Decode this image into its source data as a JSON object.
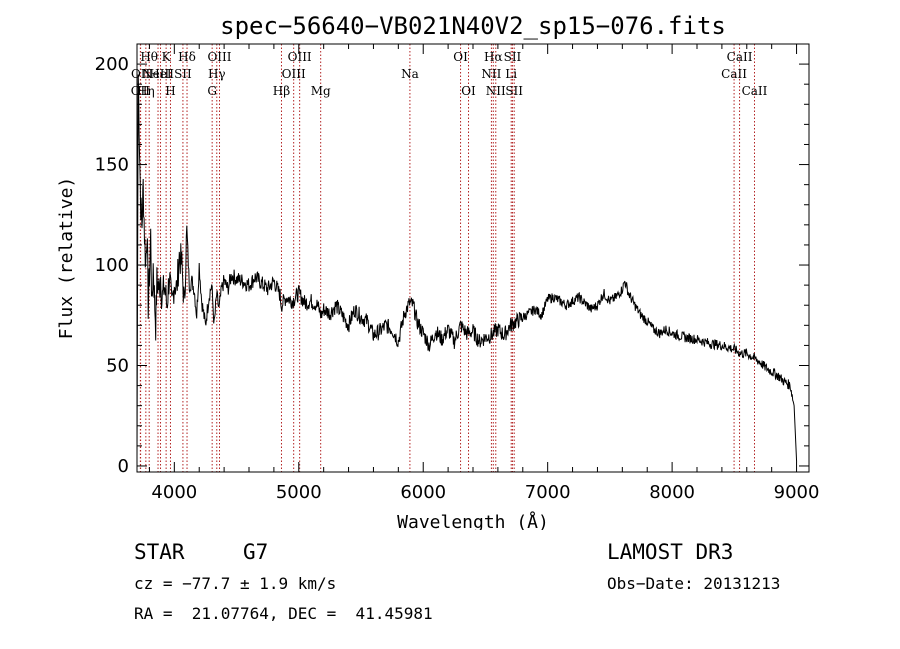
{
  "chart_data": {
    "type": "line",
    "title": "spec−56640−VB021N40V2_sp15−076.fits",
    "xlabel": "Wavelength (Å)",
    "ylabel": "Flux (relative)",
    "xlim": [
      3700,
      9100
    ],
    "ylim": [
      -3,
      210
    ],
    "xticks": [
      4000,
      5000,
      6000,
      7000,
      8000,
      9000
    ],
    "yticks": [
      0,
      50,
      100,
      150,
      200
    ],
    "series": [
      {
        "name": "spectrum",
        "x": [
          3700,
          3710,
          3720,
          3730,
          3740,
          3750,
          3760,
          3770,
          3780,
          3790,
          3800,
          3810,
          3820,
          3830,
          3840,
          3850,
          3860,
          3870,
          3880,
          3890,
          3900,
          3920,
          3940,
          3960,
          3980,
          4000,
          4020,
          4040,
          4060,
          4080,
          4100,
          4120,
          4140,
          4160,
          4180,
          4200,
          4220,
          4250,
          4280,
          4300,
          4320,
          4340,
          4360,
          4380,
          4400,
          4430,
          4460,
          4500,
          4550,
          4600,
          4650,
          4700,
          4750,
          4800,
          4850,
          4860,
          4900,
          4950,
          5000,
          5050,
          5100,
          5150,
          5180,
          5200,
          5250,
          5300,
          5350,
          5400,
          5450,
          5500,
          5550,
          5600,
          5650,
          5700,
          5750,
          5800,
          5850,
          5890,
          5920,
          5950,
          6000,
          6050,
          6100,
          6150,
          6200,
          6250,
          6300,
          6350,
          6400,
          6450,
          6500,
          6550,
          6563,
          6600,
          6650,
          6700,
          6750,
          6800,
          6850,
          6900,
          6950,
          7000,
          7050,
          7100,
          7150,
          7200,
          7250,
          7300,
          7350,
          7400,
          7450,
          7500,
          7550,
          7600,
          7620,
          7650,
          7700,
          7750,
          7800,
          7850,
          7900,
          7950,
          8000,
          8100,
          8200,
          8300,
          8400,
          8500,
          8550,
          8600,
          8650,
          8700,
          8750,
          8800,
          8850,
          8900,
          8950,
          8980,
          9000
        ],
        "y": [
          5,
          195,
          160,
          130,
          120,
          140,
          115,
          100,
          118,
          80,
          95,
          115,
          78,
          100,
          85,
          70,
          92,
          90,
          88,
          95,
          82,
          90,
          80,
          95,
          78,
          92,
          88,
          105,
          100,
          80,
          118,
          90,
          92,
          88,
          75,
          100,
          82,
          70,
          85,
          90,
          70,
          85,
          78,
          88,
          92,
          88,
          95,
          93,
          92,
          90,
          94,
          91,
          88,
          92,
          85,
          80,
          84,
          82,
          86,
          81,
          82,
          80,
          75,
          78,
          76,
          80,
          75,
          70,
          78,
          74,
          72,
          65,
          67,
          70,
          68,
          62,
          76,
          81,
          80,
          72,
          66,
          60,
          67,
          63,
          68,
          62,
          70,
          66,
          67,
          62,
          64,
          65,
          66,
          68,
          65,
          70,
          72,
          74,
          76,
          78,
          75,
          83,
          84,
          82,
          80,
          82,
          84,
          81,
          78,
          80,
          86,
          82,
          84,
          88,
          92,
          86,
          80,
          75,
          72,
          68,
          66,
          68,
          66,
          64,
          63,
          61,
          60,
          58,
          56,
          56,
          54,
          52,
          49,
          47,
          45,
          42,
          40,
          30,
          2
        ]
      }
    ],
    "lines": [
      {
        "wave": 3727,
        "label": "OII",
        "row": 3
      },
      {
        "wave": 3729,
        "label": "OII",
        "row": 2
      },
      {
        "wave": 3771,
        "label": "Hη",
        "row": 3
      },
      {
        "wave": 3798,
        "label": "Hθ",
        "row": 1
      },
      {
        "wave": 3869,
        "label": "NeIII",
        "row": 2
      },
      {
        "wave": 3889,
        "label": "HeI",
        "row": 2
      },
      {
        "wave": 3934,
        "label": "K",
        "row": 1
      },
      {
        "wave": 3969,
        "label": "H",
        "row": 3
      },
      {
        "wave": 4069,
        "label": "SII",
        "row": 2
      },
      {
        "wave": 4102,
        "label": "Hδ",
        "row": 1
      },
      {
        "wave": 4304,
        "label": "G",
        "row": 3
      },
      {
        "wave": 4341,
        "label": "Hγ",
        "row": 2
      },
      {
        "wave": 4363,
        "label": "OIII",
        "row": 1
      },
      {
        "wave": 4861,
        "label": "Hβ",
        "row": 3
      },
      {
        "wave": 4959,
        "label": "OIII",
        "row": 2
      },
      {
        "wave": 5007,
        "label": "OIII",
        "row": 1
      },
      {
        "wave": 5176,
        "label": "Mg",
        "row": 3
      },
      {
        "wave": 5893,
        "label": "Na",
        "row": 2
      },
      {
        "wave": 6300,
        "label": "OI",
        "row": 1
      },
      {
        "wave": 6364,
        "label": "OI",
        "row": 3
      },
      {
        "wave": 6548,
        "label": "NII",
        "row": 2
      },
      {
        "wave": 6563,
        "label": "Hα",
        "row": 1
      },
      {
        "wave": 6583,
        "label": "NII",
        "row": 3
      },
      {
        "wave": 6707,
        "label": "Li",
        "row": 2
      },
      {
        "wave": 6717,
        "label": "SII",
        "row": 1
      },
      {
        "wave": 6731,
        "label": "SII",
        "row": 3
      },
      {
        "wave": 8498,
        "label": "CaII",
        "row": 2
      },
      {
        "wave": 8542,
        "label": "CaII",
        "row": 1
      },
      {
        "wave": 8662,
        "label": "CaII",
        "row": 3
      }
    ]
  },
  "footer": {
    "object_class": "STAR",
    "subclass": "G7",
    "cz": "cz = −77.7 ± 1.9 km/s",
    "coords": "RA =  21.07764, DEC =  41.45981",
    "survey": "LAMOST DR3",
    "obs_date": "Obs−Date: 20131213"
  },
  "colors": {
    "spectrum": "#000000",
    "line_marker": "#b22222",
    "axis": "#000000"
  }
}
